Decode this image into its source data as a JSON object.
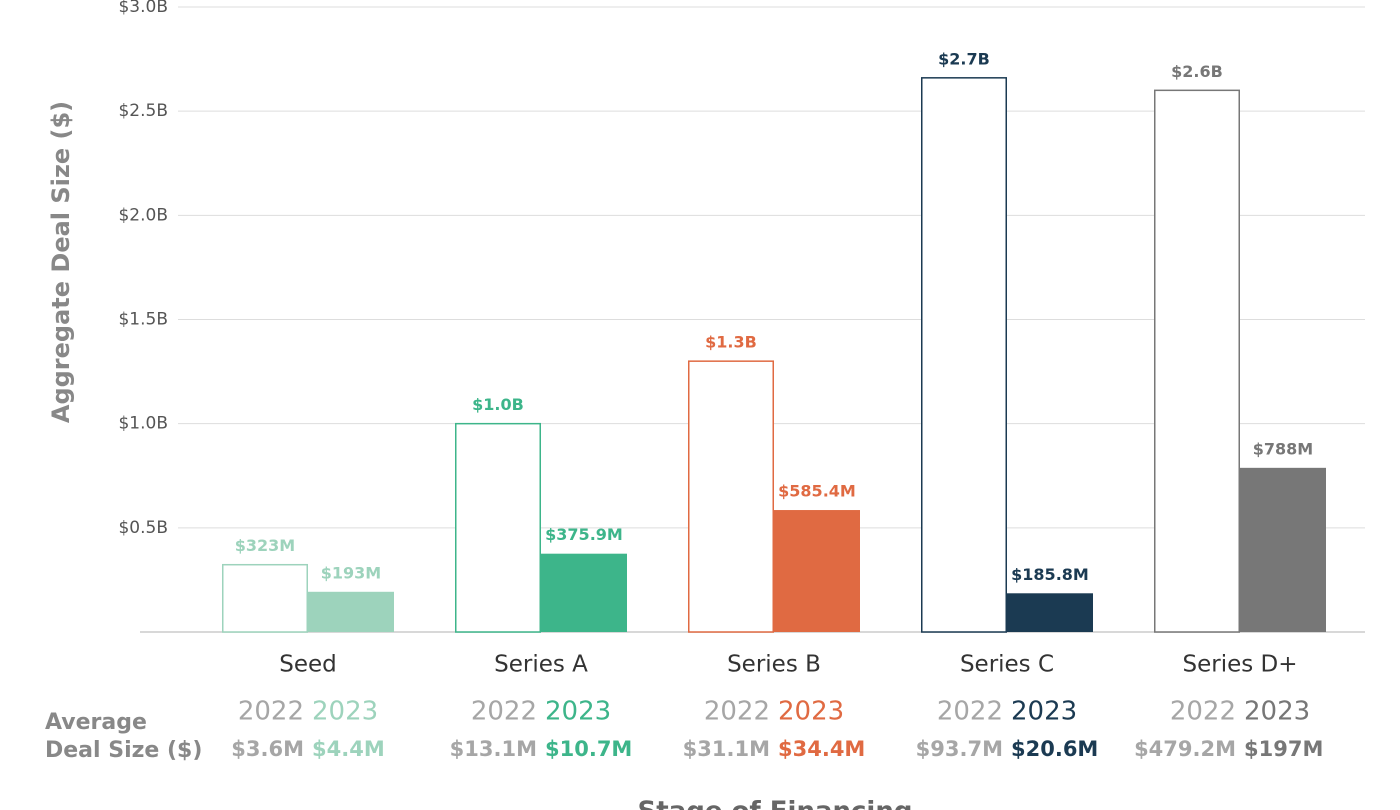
{
  "chart_data": {
    "type": "bar",
    "y_axis_label": "Aggregate Deal Size ($)",
    "x_axis_label": "Stage of Financing",
    "categories": [
      "Seed",
      "Series A",
      "Series B",
      "Series C",
      "Series D+"
    ],
    "category_colors": [
      "#9dd3bc",
      "#3db58a",
      "#e06a42",
      "#1b3a52",
      "#777777"
    ],
    "series": [
      {
        "name": "2022",
        "color": "#a6a6a6",
        "style": "outline",
        "values": [
          0.323,
          1.0,
          1.3,
          2.66,
          2.6
        ],
        "value_labels": [
          "$323M",
          "$1.0B",
          "$1.3B",
          "$2.7B",
          "$2.6B"
        ],
        "average_labels": [
          "$3.6M",
          "$13.1M",
          "$31.1M",
          "$93.7M",
          "$479.2M"
        ]
      },
      {
        "name": "2023",
        "style": "filled",
        "values": [
          0.193,
          0.3759,
          0.5854,
          0.1858,
          0.788
        ],
        "value_labels": [
          "$193M",
          "$375.9M",
          "$585.4M",
          "$185.8M",
          "$788M"
        ],
        "average_labels": [
          "$4.4M",
          "$10.7M",
          "$34.4M",
          "$20.6M",
          "$197M"
        ]
      }
    ],
    "average_title_lines": [
      "Average",
      "Deal Size ($)"
    ],
    "ylim": [
      0,
      3.0
    ],
    "yticks": [
      {
        "value": 0.5,
        "label": "$0.5B"
      },
      {
        "value": 1.0,
        "label": "$1.0B"
      },
      {
        "value": 1.5,
        "label": "$1.5B"
      },
      {
        "value": 2.0,
        "label": "$2.0B"
      },
      {
        "value": 2.5,
        "label": "$2.5B"
      },
      {
        "value": 3.0,
        "label": "$3.0B"
      }
    ],
    "grid": true
  }
}
